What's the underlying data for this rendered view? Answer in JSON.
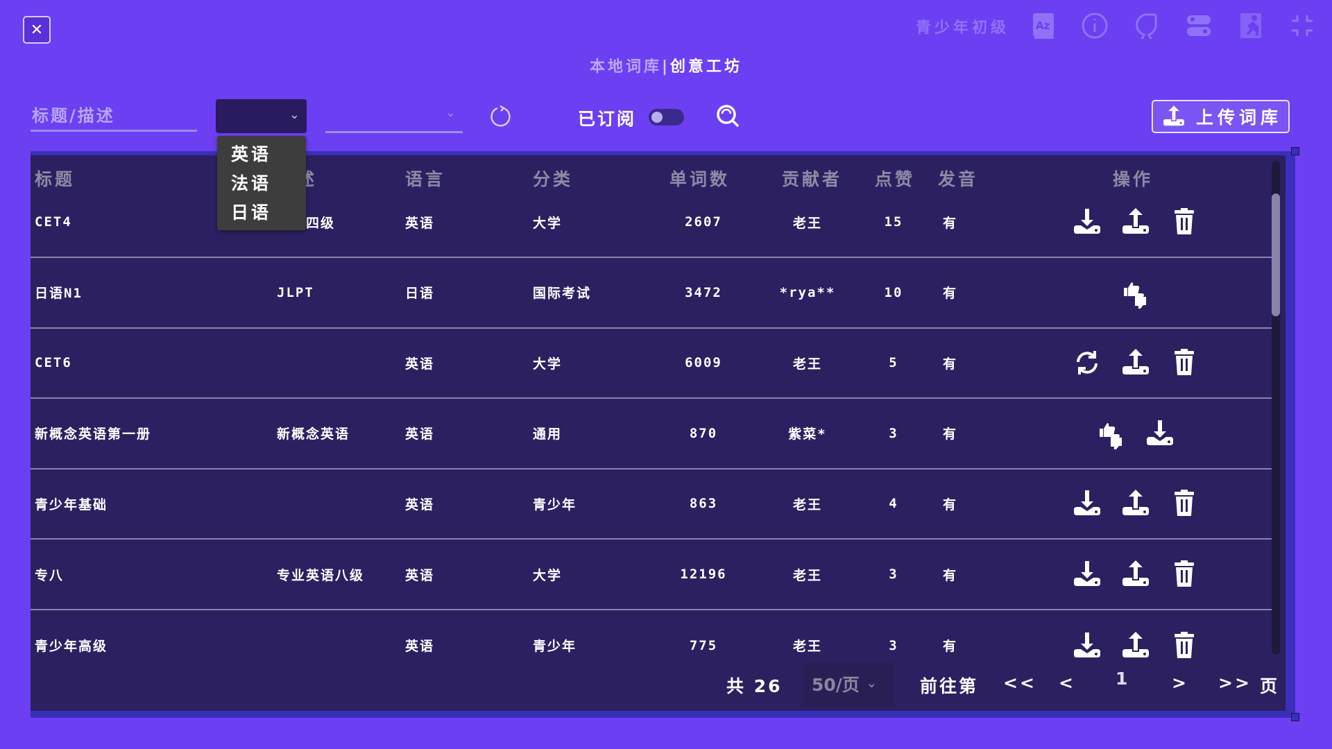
{
  "header": {
    "close_icon": "close-icon",
    "level": "青少年初级",
    "icons": [
      "dictionary-az-icon",
      "info-icon",
      "feedback-icon",
      "settings-toggle-icon",
      "exit-icon",
      "fullscreen-icon"
    ],
    "title_local": "本地词库",
    "title_sep": "|",
    "title_workshop": "创意工坊"
  },
  "toolbar": {
    "search_placeholder": "标题/描述",
    "language_select_value": "",
    "language_options": [
      "英语",
      "法语",
      "日语"
    ],
    "category_select_value": "",
    "subscribed_label": "已订阅",
    "subscribed_on": false,
    "upload_label": "上传词库"
  },
  "table": {
    "headers": [
      "标题",
      "描述",
      "语言",
      "分类",
      "单词数",
      "贡献者",
      "点赞",
      "发音",
      "操作"
    ],
    "rows": [
      {
        "cells": [
          "CET4",
          "英语四级",
          "英语",
          "大学",
          "2607",
          "老王",
          "15",
          "有"
        ],
        "actions": [
          "download",
          "upload",
          "delete"
        ]
      },
      {
        "cells": [
          "日语N1",
          "JLPT",
          "日语",
          "国际考试",
          "3472",
          "*rya**",
          "10",
          "有"
        ],
        "actions": [
          "like-dislike"
        ]
      },
      {
        "cells": [
          "CET6",
          "",
          "英语",
          "大学",
          "6009",
          "老王",
          "5",
          "有"
        ],
        "actions": [
          "sync",
          "upload",
          "delete"
        ]
      },
      {
        "cells": [
          "新概念英语第一册",
          "新概念英语",
          "英语",
          "通用",
          "870",
          "紫菜*",
          "3",
          "有"
        ],
        "actions": [
          "like-dislike",
          "download"
        ]
      },
      {
        "cells": [
          "青少年基础",
          "",
          "英语",
          "青少年",
          "863",
          "老王",
          "4",
          "有"
        ],
        "actions": [
          "download",
          "upload",
          "delete"
        ]
      },
      {
        "cells": [
          "专八",
          "专业英语八级",
          "英语",
          "大学",
          "12196",
          "老王",
          "3",
          "有"
        ],
        "actions": [
          "download",
          "upload",
          "delete"
        ]
      },
      {
        "cells": [
          "青少年高级",
          "",
          "英语",
          "青少年",
          "775",
          "老王",
          "3",
          "有"
        ],
        "actions": [
          "download",
          "upload",
          "delete"
        ]
      }
    ]
  },
  "pagination": {
    "total_label": "共 26",
    "page_size": "50/页",
    "goto_label": "前往第",
    "first": "<<",
    "prev": "<",
    "current": "1",
    "next": ">",
    "last": ">>",
    "page_suffix": "页"
  },
  "colors": {
    "background": "#6c3ff2",
    "panel": "#2d2060",
    "accent": "#3a2fb8"
  }
}
